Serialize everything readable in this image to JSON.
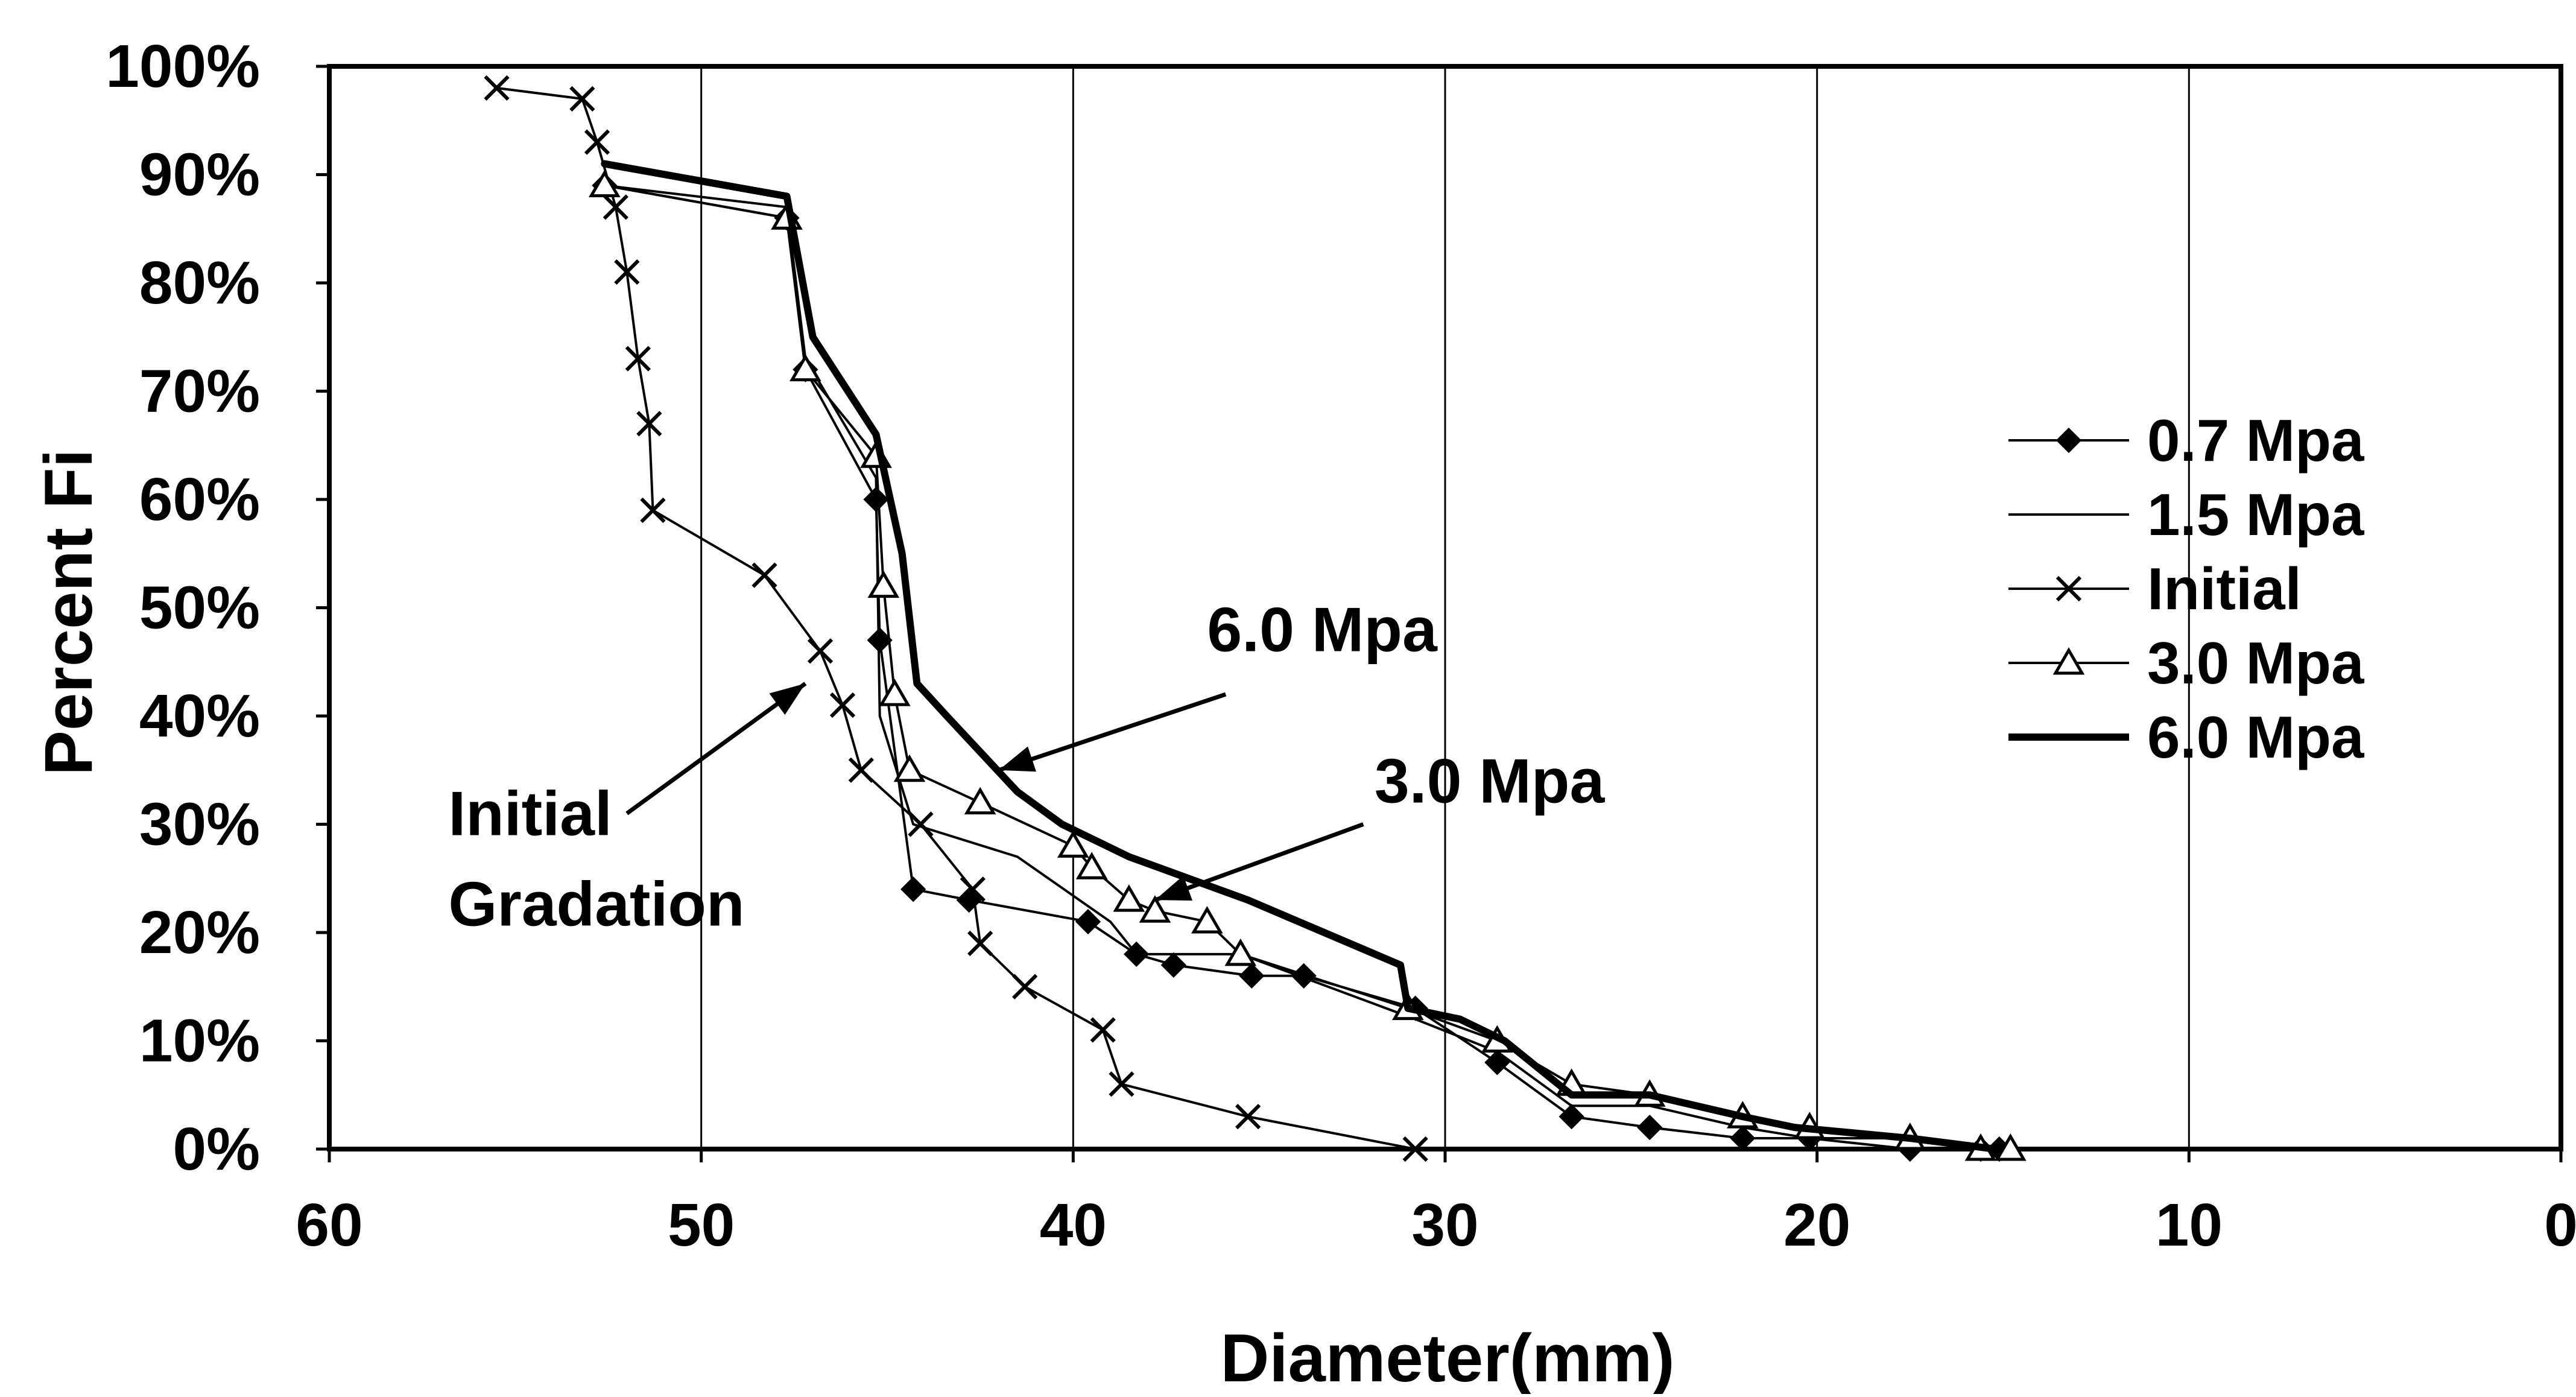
{
  "chart_data": {
    "type": "line",
    "xlabel": "Diameter(mm)",
    "ylabel": "Percent Fi",
    "xlim": [
      60,
      0
    ],
    "ylim": [
      0,
      100
    ],
    "x_reversed": true,
    "x_ticks": [
      60,
      50,
      40,
      30,
      20,
      10,
      0
    ],
    "y_ticks": [
      0,
      10,
      20,
      30,
      40,
      50,
      60,
      70,
      80,
      90,
      100
    ],
    "y_tick_labels": [
      "0%",
      "10%",
      "20%",
      "30%",
      "40%",
      "50%",
      "60%",
      "70%",
      "80%",
      "90%",
      "100%"
    ],
    "grid": "vertical",
    "legend_position": "right",
    "series": [
      {
        "name": "0.7 Mpa",
        "marker": "diamond",
        "line_width": 4,
        "x": [
          52.6,
          47.7,
          47.2,
          45.3,
          45.2,
          44.3,
          42.8,
          39.6,
          38.3,
          37.3,
          35.2,
          33.8,
          30.8,
          28.6,
          26.6,
          24.5,
          22.0,
          20.2,
          17.5,
          15.6,
          15.1
        ],
        "y": [
          89,
          86,
          72,
          60,
          47,
          24,
          23,
          21,
          18,
          17,
          16,
          16,
          13,
          8,
          3,
          2,
          1,
          1,
          0,
          0,
          0
        ]
      },
      {
        "name": "1.5 Mpa",
        "marker": "none",
        "line_width": 4,
        "x": [
          52.6,
          47.7,
          47.2,
          45.3,
          45.2,
          44.3,
          41.5,
          39.0,
          38.3,
          35.5,
          30.8,
          28.6,
          26.6,
          24.5,
          22.0,
          20.2,
          17.5,
          15.6,
          15.1
        ],
        "y": [
          89,
          87,
          73,
          62,
          40,
          30,
          27,
          21,
          18,
          18,
          12,
          9,
          4,
          4,
          2,
          1,
          1,
          0,
          0
        ]
      },
      {
        "name": "Initial",
        "marker": "x",
        "line_width": 4,
        "x": [
          55.5,
          53.2,
          52.8,
          52.3,
          52.0,
          51.7,
          51.4,
          51.3,
          48.3,
          46.8,
          46.2,
          45.7,
          44.1,
          42.7,
          42.5,
          41.3,
          39.2,
          38.7,
          35.3,
          30.8
        ],
        "y": [
          98,
          97,
          93,
          87,
          81,
          73,
          67,
          59,
          53,
          46,
          41,
          35,
          30,
          24,
          19,
          15,
          11,
          6,
          3,
          0
        ]
      },
      {
        "name": "3.0 Mpa",
        "marker": "triangle",
        "line_width": 4,
        "x": [
          52.6,
          47.7,
          47.2,
          45.3,
          45.1,
          44.8,
          44.4,
          42.5,
          40.0,
          39.5,
          38.5,
          37.8,
          36.4,
          35.5,
          31.0,
          28.6,
          26.6,
          24.5,
          22.0,
          20.2,
          17.5,
          15.6,
          14.8
        ],
        "y": [
          89,
          86,
          72,
          64,
          52,
          42,
          35,
          32,
          28,
          26,
          23,
          22,
          21,
          18,
          13,
          10,
          6,
          5,
          3,
          2,
          1,
          0,
          0
        ]
      },
      {
        "name": "6.0 Mpa",
        "marker": "none",
        "line_width": 12,
        "x": [
          52.6,
          47.7,
          47.0,
          45.3,
          44.6,
          44.2,
          43.4,
          41.5,
          40.3,
          38.5,
          35.3,
          31.2,
          31.0,
          29.6,
          28.4,
          26.6,
          26.2,
          24.5,
          22.0,
          20.6,
          17.5,
          15.2
        ],
        "y": [
          91,
          88,
          75,
          66,
          55,
          43,
          40,
          33,
          30,
          27,
          23,
          17,
          13,
          12,
          10,
          5,
          5,
          5,
          3,
          2,
          1,
          0
        ]
      }
    ],
    "annotations": [
      {
        "text": "6.0 Mpa",
        "lines": [
          "6.0 Mpa"
        ],
        "text_x": 36.4,
        "text_y": 46,
        "arrow_from": [
          35.9,
          42
        ],
        "arrow_to": [
          42.0,
          35
        ]
      },
      {
        "text": "3.0 Mpa",
        "lines": [
          "3.0 Mpa"
        ],
        "text_x": 31.9,
        "text_y": 32,
        "arrow_from": [
          32.2,
          30
        ],
        "arrow_to": [
          37.8,
          23
        ]
      },
      {
        "text": "Initial Gradation",
        "lines": [
          "Initial",
          "Gradation"
        ],
        "text_x": 56.8,
        "text_y": 29,
        "arrow_from": [
          52.0,
          31
        ],
        "arrow_to": [
          47.2,
          43
        ]
      }
    ]
  }
}
